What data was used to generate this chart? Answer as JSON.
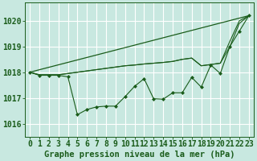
{
  "background_color": "#c8e8e0",
  "plot_bg_color": "#c8e8e0",
  "grid_color": "#ffffff",
  "line_color": "#1a5c1a",
  "marker_color": "#1a5c1a",
  "xlabel": "Graphe pression niveau de la mer (hPa)",
  "xlim": [
    -0.5,
    23.5
  ],
  "ylim": [
    1015.5,
    1020.7
  ],
  "yticks": [
    1016,
    1017,
    1018,
    1019,
    1020
  ],
  "xticks": [
    0,
    1,
    2,
    3,
    4,
    5,
    6,
    7,
    8,
    9,
    10,
    11,
    12,
    13,
    14,
    15,
    16,
    17,
    18,
    19,
    20,
    21,
    22,
    23
  ],
  "line1_x": [
    0,
    23
  ],
  "line1_y": [
    1018.0,
    1020.2
  ],
  "line2_x": [
    0,
    1,
    2,
    3,
    4,
    5,
    6,
    7,
    8,
    9,
    10,
    11,
    12,
    13,
    14,
    15,
    16,
    17,
    18,
    19,
    20,
    21,
    22,
    23
  ],
  "line2_y": [
    1018.0,
    1017.9,
    1017.9,
    1017.9,
    1017.95,
    1018.0,
    1018.05,
    1018.1,
    1018.15,
    1018.2,
    1018.25,
    1018.28,
    1018.32,
    1018.35,
    1018.38,
    1018.42,
    1018.5,
    1018.55,
    1018.25,
    1018.3,
    1018.35,
    1019.0,
    1019.9,
    1020.2
  ],
  "line3_x": [
    0,
    1,
    2,
    3,
    4,
    5,
    6,
    7,
    8,
    9,
    10,
    11,
    12,
    13,
    14,
    15,
    16,
    17,
    18,
    19,
    20,
    21,
    22,
    23
  ],
  "line3_y": [
    1018.0,
    1017.9,
    1017.9,
    1017.9,
    1017.95,
    1018.0,
    1018.05,
    1018.1,
    1018.15,
    1018.2,
    1018.25,
    1018.28,
    1018.32,
    1018.35,
    1018.38,
    1018.42,
    1018.5,
    1018.55,
    1018.25,
    1018.3,
    1018.35,
    1019.2,
    1020.0,
    1020.2
  ],
  "line4_x": [
    0,
    1,
    2,
    3,
    4,
    5,
    6,
    7,
    8,
    9,
    10,
    11,
    12,
    13,
    14,
    15,
    16,
    17,
    18,
    19,
    20,
    21,
    22,
    23
  ],
  "line4_y": [
    1018.0,
    1017.88,
    1017.88,
    1017.88,
    1017.82,
    1016.35,
    1016.55,
    1016.65,
    1016.68,
    1016.68,
    1017.05,
    1017.45,
    1017.75,
    1016.97,
    1016.95,
    1017.2,
    1017.2,
    1017.8,
    1017.42,
    1018.28,
    1017.95,
    1019.0,
    1019.6,
    1020.2
  ],
  "tick_fontsize": 7,
  "axis_fontsize": 7.5
}
